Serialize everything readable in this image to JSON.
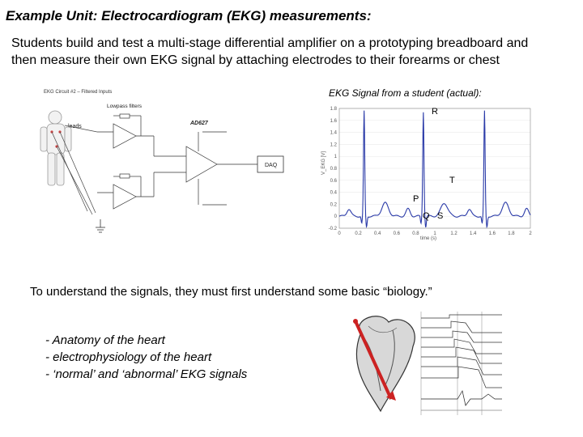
{
  "title": "Example Unit:  Electrocardiogram (EKG) measurements:",
  "intro": {
    "line1": "Students build and test a multi-stage differential amplifier on a prototyping breadboard and",
    "line2": "then measure their own EKG signal by attaching electrodes to their forearms or chest"
  },
  "circuit": {
    "heading": "EKG Circuit #2 – Filtered Inputs",
    "lowpass_label": "Lowpass filters",
    "leads_label": "leads",
    "chip_label": "AD627",
    "daq_label": "DAQ"
  },
  "ekg": {
    "caption": "EKG Signal from a student (actual):",
    "ylabel": "V_EKG [V]",
    "xlabel": "time (s)",
    "yticks": [
      "1.8",
      "1.6",
      "1.4",
      "1.2",
      "1",
      "0.8",
      "0.6",
      "0.4",
      "0.2",
      "0",
      "-0.2"
    ],
    "xticks": [
      "0",
      "0.2",
      "0.4",
      "0.6",
      "0.8",
      "1",
      "1.2",
      "1.4",
      "1.6",
      "1.8",
      "2"
    ],
    "wave_labels": {
      "R": "R",
      "T": "T",
      "P": "P",
      "Q": "Q",
      "S": "S"
    }
  },
  "middle_text": "To understand the signals, they must first understand some basic “biology.”",
  "bullets": [
    "- Anatomy of the heart",
    "- electrophysiology of the heart",
    "- ‘normal’ and ‘abnormal’ EKG signals"
  ],
  "colors": {
    "text": "#000000",
    "wave": "#2a3aa8",
    "heart_arrow": "#cc2222"
  }
}
